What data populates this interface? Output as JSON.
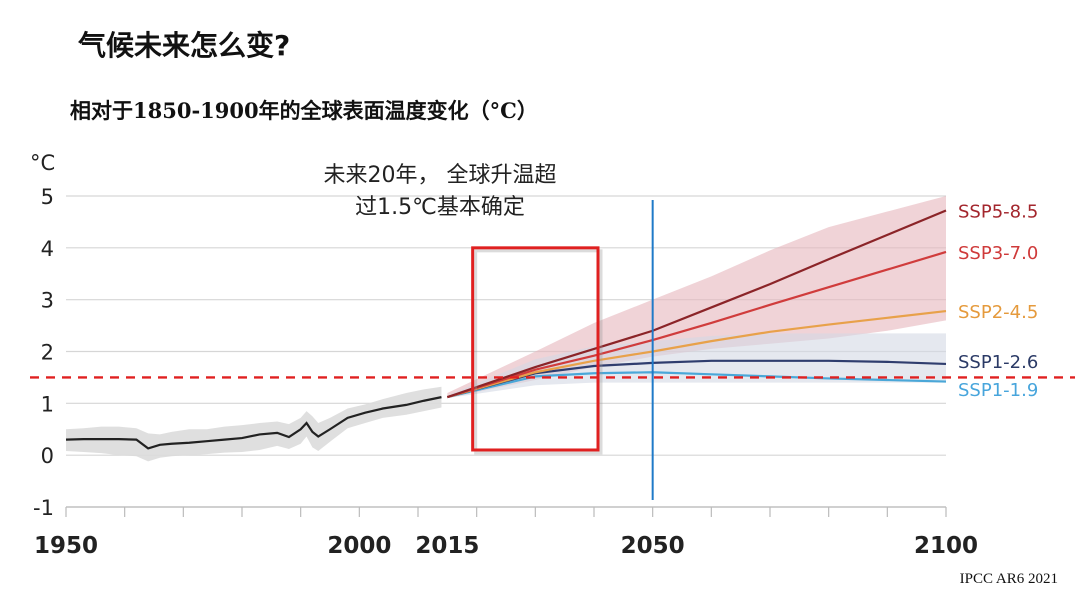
{
  "slide": {
    "title": "气候未来怎么变?",
    "source": "IPCC AR6 2021"
  },
  "chart_data": {
    "type": "line",
    "title": "相对于1850-1900年的全球表面温度变化（°C）",
    "ylabel": "°C",
    "xlim": [
      1950,
      2100
    ],
    "ylim": [
      -1,
      5
    ],
    "yticks": [
      "-1",
      "0",
      "1",
      "2",
      "3",
      "4",
      "5"
    ],
    "xticks": [
      {
        "value": 1950,
        "label": "1950"
      },
      {
        "value": 2000,
        "label": "2000"
      },
      {
        "value": 2015,
        "label": "2015"
      },
      {
        "value": 2050,
        "label": "2050"
      },
      {
        "value": 2100,
        "label": "2100"
      }
    ],
    "grid": true,
    "reference_line": {
      "value": 1.5,
      "color": "#e02020",
      "style": "dashed"
    },
    "vertical_marker": {
      "value": 2050,
      "color": "#1f7ac8"
    },
    "highlight_box": {
      "x_range": [
        2020,
        2040
      ],
      "y_range": [
        0.1,
        4.0
      ],
      "color": "#e02020"
    },
    "annotation": {
      "line1": "未来20年， 全球升温超",
      "line2": "过1.5℃基本确定"
    },
    "historical": {
      "name": "Historical",
      "color": "#222222",
      "x": [
        1950,
        1953,
        1956,
        1959,
        1962,
        1964,
        1966,
        1968,
        1971,
        1974,
        1977,
        1980,
        1983,
        1986,
        1988,
        1990,
        1991,
        1992,
        1993,
        1995,
        1998,
        2001,
        2004,
        2008,
        2011,
        2014
      ],
      "y": [
        0.3,
        0.31,
        0.31,
        0.31,
        0.3,
        0.13,
        0.2,
        0.22,
        0.24,
        0.27,
        0.3,
        0.33,
        0.4,
        0.43,
        0.35,
        0.5,
        0.62,
        0.45,
        0.36,
        0.5,
        0.72,
        0.82,
        0.9,
        0.97,
        1.05,
        1.12
      ],
      "band_upper": [
        0.5,
        0.52,
        0.55,
        0.55,
        0.52,
        0.42,
        0.4,
        0.45,
        0.5,
        0.5,
        0.55,
        0.58,
        0.62,
        0.65,
        0.6,
        0.72,
        0.85,
        0.75,
        0.62,
        0.72,
        0.9,
        0.98,
        1.08,
        1.2,
        1.27,
        1.32
      ],
      "band_lower": [
        0.08,
        0.06,
        0.04,
        0.0,
        -0.02,
        -0.12,
        -0.05,
        -0.02,
        0.0,
        0.02,
        0.05,
        0.06,
        0.1,
        0.18,
        0.12,
        0.22,
        0.36,
        0.15,
        0.08,
        0.26,
        0.52,
        0.62,
        0.72,
        0.78,
        0.85,
        0.92
      ]
    },
    "series": [
      {
        "name": "SSP5-8.5",
        "color": "#8b2428",
        "label_color": "#a3262d",
        "x": [
          2015,
          2030,
          2040,
          2050,
          2060,
          2070,
          2080,
          2090,
          2100
        ],
        "y": [
          1.12,
          1.7,
          2.05,
          2.4,
          2.85,
          3.3,
          3.78,
          4.25,
          4.72
        ]
      },
      {
        "name": "SSP3-7.0",
        "color": "#d03c3c",
        "label_color": "#cf3a3a",
        "x": [
          2015,
          2030,
          2040,
          2050,
          2060,
          2070,
          2080,
          2090,
          2100
        ],
        "y": [
          1.12,
          1.65,
          1.92,
          2.22,
          2.55,
          2.9,
          3.24,
          3.58,
          3.92
        ]
      },
      {
        "name": "SSP2-4.5",
        "color": "#e8a14a",
        "label_color": "#e59a3c",
        "x": [
          2015,
          2030,
          2040,
          2050,
          2060,
          2070,
          2080,
          2090,
          2100
        ],
        "y": [
          1.12,
          1.6,
          1.82,
          2.0,
          2.2,
          2.38,
          2.52,
          2.65,
          2.78
        ]
      },
      {
        "name": "SSP1-2.6",
        "color": "#2f3d6e",
        "label_color": "#2b3a66",
        "x": [
          2015,
          2030,
          2040,
          2050,
          2060,
          2070,
          2080,
          2090,
          2100
        ],
        "y": [
          1.12,
          1.58,
          1.72,
          1.78,
          1.82,
          1.82,
          1.82,
          1.8,
          1.76
        ]
      },
      {
        "name": "SSP1-1.9",
        "color": "#4aa7d8",
        "label_color": "#47a5dc",
        "x": [
          2015,
          2030,
          2040,
          2050,
          2060,
          2070,
          2080,
          2090,
          2100
        ],
        "y": [
          1.12,
          1.52,
          1.58,
          1.6,
          1.56,
          1.52,
          1.48,
          1.45,
          1.42
        ]
      }
    ],
    "bands": [
      {
        "name": "SSP5-8.5 range",
        "color": "#e6b6bd",
        "x": [
          2015,
          2030,
          2040,
          2050,
          2060,
          2070,
          2080,
          2090,
          2100
        ],
        "upper": [
          1.2,
          2.0,
          2.55,
          3.0,
          3.45,
          3.95,
          4.4,
          4.7,
          5.0
        ],
        "lower": [
          1.1,
          1.45,
          1.7,
          1.9,
          2.05,
          2.15,
          2.25,
          2.4,
          2.6
        ]
      },
      {
        "name": "SSP1-2.6 range",
        "color": "#d3d8e4",
        "x": [
          2015,
          2030,
          2040,
          2050,
          2060,
          2070,
          2080,
          2090,
          2100
        ],
        "upper": [
          1.15,
          1.85,
          2.1,
          2.2,
          2.3,
          2.35,
          2.35,
          2.35,
          2.35
        ],
        "lower": [
          1.1,
          1.35,
          1.4,
          1.4,
          1.4,
          1.4,
          1.4,
          1.4,
          1.4
        ]
      }
    ]
  }
}
